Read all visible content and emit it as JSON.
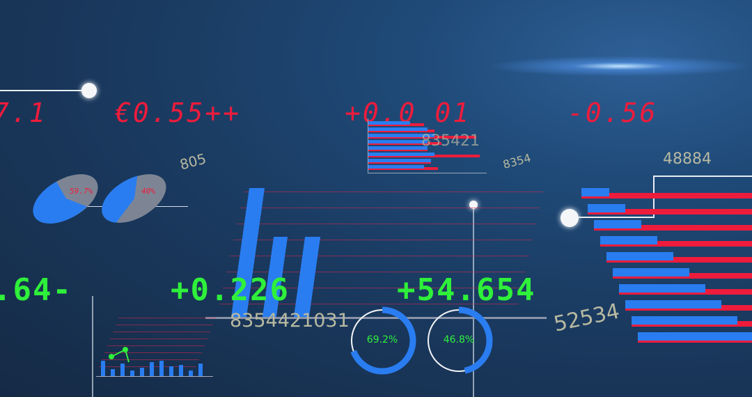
{
  "ticker_red": [
    "7.1",
    "€0.55++",
    "+0.0 01",
    "-0.56"
  ],
  "ticker_green": [
    ".64-",
    "+0.226",
    "+54.654"
  ],
  "grey_numbers": [
    "805",
    "8354",
    "48884",
    "835421",
    "8354421031",
    "52534"
  ],
  "pies": [
    {
      "label": "59.7%",
      "value": 59.7
    },
    {
      "label": "40%",
      "value": 40
    }
  ],
  "donuts": [
    {
      "label": "69.2%",
      "value": 69.2
    },
    {
      "label": "46.8%",
      "value": 46.8
    }
  ],
  "colors": {
    "red": "#ee1c3c",
    "green": "#2ff03a",
    "blue": "#2a7df0",
    "background": "#1a3a60"
  }
}
